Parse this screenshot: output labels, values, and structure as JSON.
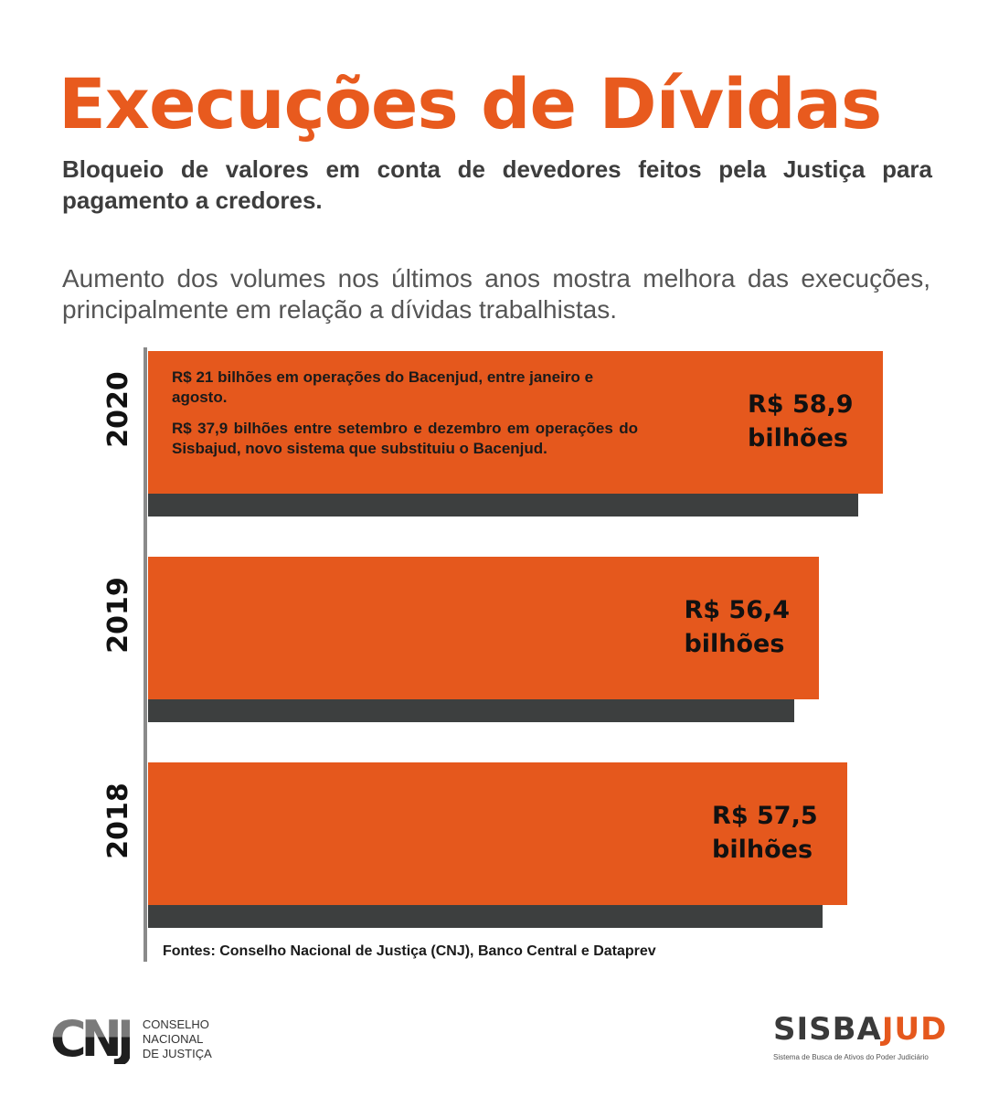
{
  "header": {
    "title": "Execuções de Dívidas",
    "subtitle": "Bloqueio de valores em conta de devedores feitos pela Justiça para pagamento a credores.",
    "intro": "Aumento dos volumes nos últimos anos mostra melhora das execuções, principalmente em relação a dívidas trabalhistas."
  },
  "colors": {
    "accent": "#e5581d",
    "title": "#e85a1e",
    "shadow": "#3d3f3f",
    "axis": "#8a8a8a",
    "text_dark": "#111111"
  },
  "chart_data": {
    "type": "bar",
    "orientation": "horizontal",
    "title": "Execuções de Dívidas",
    "xlabel": "",
    "ylabel": "",
    "unit": "R$ bilhões",
    "categories": [
      "2020",
      "2019",
      "2018"
    ],
    "values": [
      58.9,
      56.4,
      57.5
    ],
    "value_labels": [
      [
        "R$ 58,9",
        "bilhões"
      ],
      [
        "R$ 56,4",
        "bilhões"
      ],
      [
        "R$ 57,5",
        "bilhões"
      ]
    ],
    "grid": false,
    "legend": "none",
    "annotations": {
      "2020": [
        "R$ 21 bilhões em operações do Bacenjud, entre janeiro e agosto.",
        "R$ 37,9 bilhões entre setembro e dezembro em operações do Sisbajud, novo sistema que substituiu o Bacenjud."
      ]
    },
    "source": "Fontes: Conselho Nacional de Justiça (CNJ), Banco Central e Dataprev"
  },
  "footer": {
    "cnj_mark": "CNJ",
    "cnj_lines": [
      "CONSELHO",
      "NACIONAL",
      "DE JUSTIÇA"
    ],
    "sisba_part1": "SISBA",
    "sisba_part2": "JUD",
    "sisba_tagline": "Sistema de Busca de Ativos do Poder Judiciário"
  }
}
